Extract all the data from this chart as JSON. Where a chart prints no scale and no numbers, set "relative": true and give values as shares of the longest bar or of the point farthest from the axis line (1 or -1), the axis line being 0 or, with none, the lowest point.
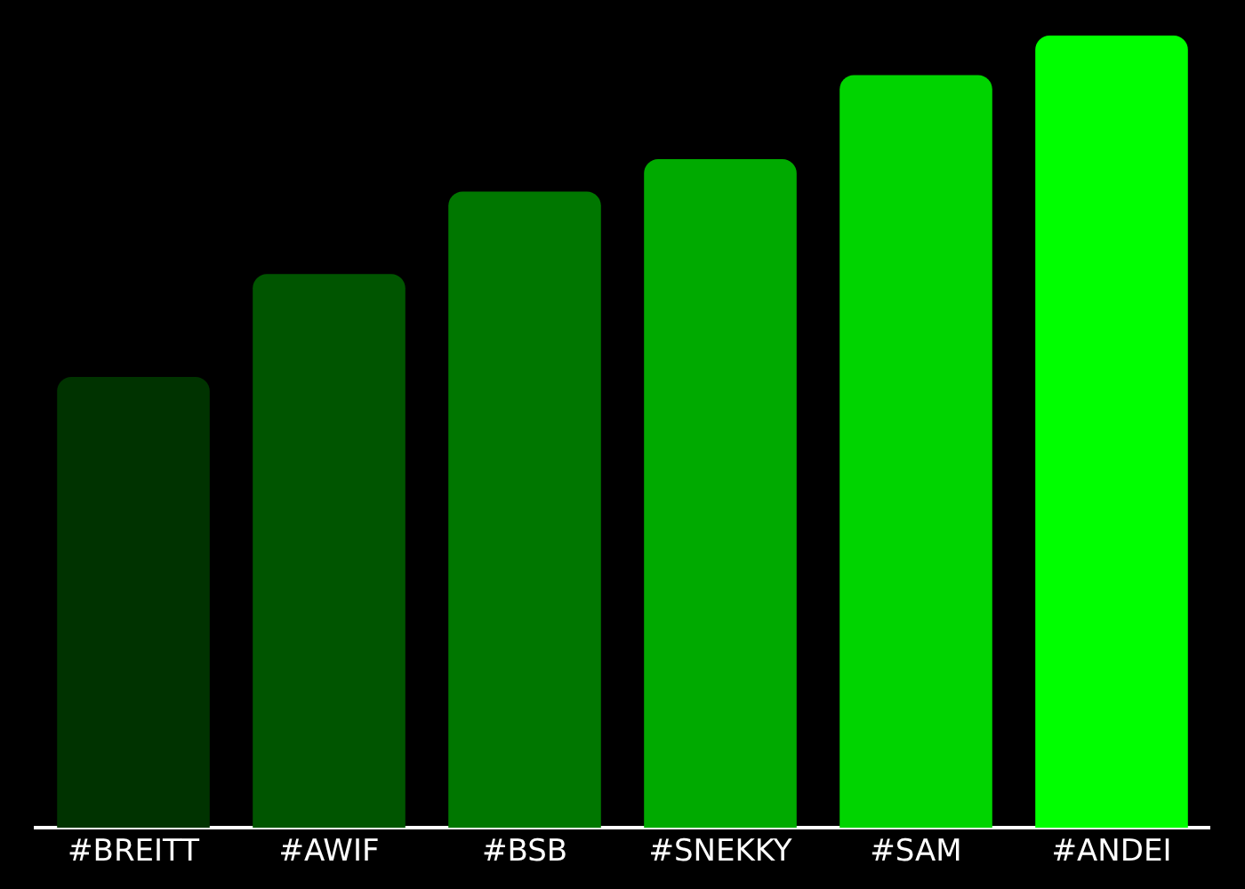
{
  "chart_data": {
    "type": "bar",
    "relative": true,
    "categories": [
      "#BREITT",
      "#AWIF",
      "#BSB",
      "#SNEKKY",
      "#SAM",
      "#ANDEI"
    ],
    "values": [
      0.569,
      0.699,
      0.803,
      0.844,
      0.95,
      1
    ],
    "colors": [
      "#003300",
      "#005500",
      "#007700",
      "#00aa00",
      "#00d400",
      "#00ff00"
    ]
  }
}
